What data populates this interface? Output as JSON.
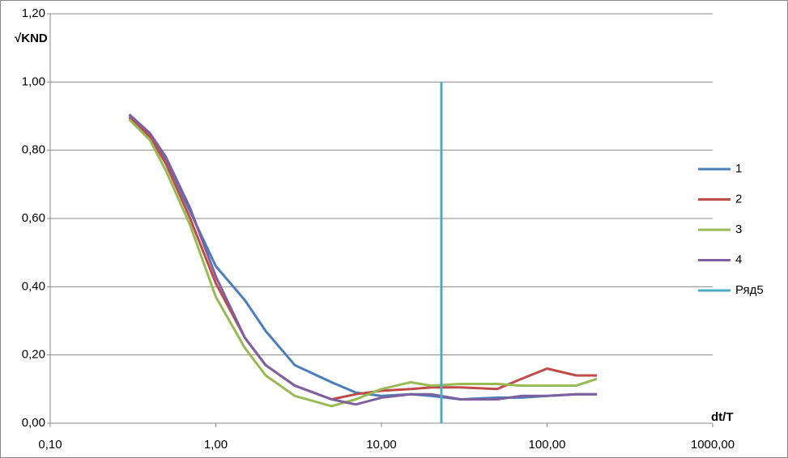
{
  "chart_data": {
    "type": "line",
    "x_label": "dt/T",
    "y_label": "√KND",
    "x_log": true,
    "grid": true,
    "legend": "right",
    "xlim": [
      0.1,
      1000
    ],
    "xticks": [
      {
        "value": 0.1,
        "label": "0,10"
      },
      {
        "value": 1,
        "label": "1,00"
      },
      {
        "value": 10,
        "label": "10,00"
      },
      {
        "value": 100,
        "label": "100,00"
      },
      {
        "value": 1000,
        "label": "1000,00"
      }
    ],
    "ylim": [
      0,
      1.2
    ],
    "yticks": [
      {
        "value": 0,
        "label": "0,00"
      },
      {
        "value": 0.2,
        "label": "0,20"
      },
      {
        "value": 0.4,
        "label": "0,40"
      },
      {
        "value": 0.6,
        "label": "0,60"
      },
      {
        "value": 0.8,
        "label": "0,80"
      },
      {
        "value": 1,
        "label": "1,00"
      },
      {
        "value": 1.2,
        "label": "1,20"
      }
    ],
    "series": [
      {
        "name": "1",
        "color": "#4a7ebb",
        "x": [
          0.3,
          0.4,
          0.5,
          0.7,
          1,
          1.5,
          2,
          3,
          5,
          7,
          10,
          15,
          20,
          30,
          50,
          70,
          100,
          150,
          200
        ],
        "values": [
          0.9,
          0.84,
          0.77,
          0.62,
          0.46,
          0.36,
          0.27,
          0.17,
          0.12,
          0.09,
          0.08,
          0.085,
          0.08,
          0.07,
          0.075,
          0.075,
          0.08,
          0.085,
          0.085
        ]
      },
      {
        "name": "2",
        "color": "#be4b48",
        "x": [
          0.3,
          0.4,
          0.5,
          0.7,
          1,
          1.5,
          2,
          3,
          5,
          7,
          10,
          15,
          20,
          30,
          50,
          70,
          100,
          150,
          200
        ],
        "values": [
          0.895,
          0.84,
          0.76,
          0.6,
          0.41,
          0.25,
          0.17,
          0.11,
          0.07,
          0.085,
          0.095,
          0.1,
          0.105,
          0.105,
          0.1,
          0.13,
          0.16,
          0.14,
          0.14
        ]
      },
      {
        "name": "3",
        "color": "#98b954",
        "x": [
          0.3,
          0.4,
          0.5,
          0.7,
          1,
          1.5,
          2,
          3,
          5,
          7,
          10,
          15,
          20,
          30,
          50,
          70,
          100,
          150,
          200
        ],
        "values": [
          0.89,
          0.83,
          0.74,
          0.58,
          0.37,
          0.22,
          0.14,
          0.08,
          0.05,
          0.07,
          0.1,
          0.12,
          0.11,
          0.115,
          0.115,
          0.11,
          0.11,
          0.11,
          0.13
        ]
      },
      {
        "name": "4",
        "color": "#7d60a0",
        "x": [
          0.3,
          0.4,
          0.5,
          0.7,
          1,
          1.5,
          2,
          3,
          5,
          7,
          10,
          15,
          20,
          30,
          50,
          70,
          100,
          150,
          200
        ],
        "values": [
          0.905,
          0.85,
          0.78,
          0.63,
          0.43,
          0.25,
          0.17,
          0.11,
          0.07,
          0.055,
          0.075,
          0.085,
          0.085,
          0.07,
          0.07,
          0.08,
          0.08,
          0.085,
          0.085
        ]
      },
      {
        "name": "Ряд5",
        "color": "#4bacc6",
        "x": [
          23,
          23
        ],
        "values": [
          0,
          1
        ]
      }
    ]
  }
}
